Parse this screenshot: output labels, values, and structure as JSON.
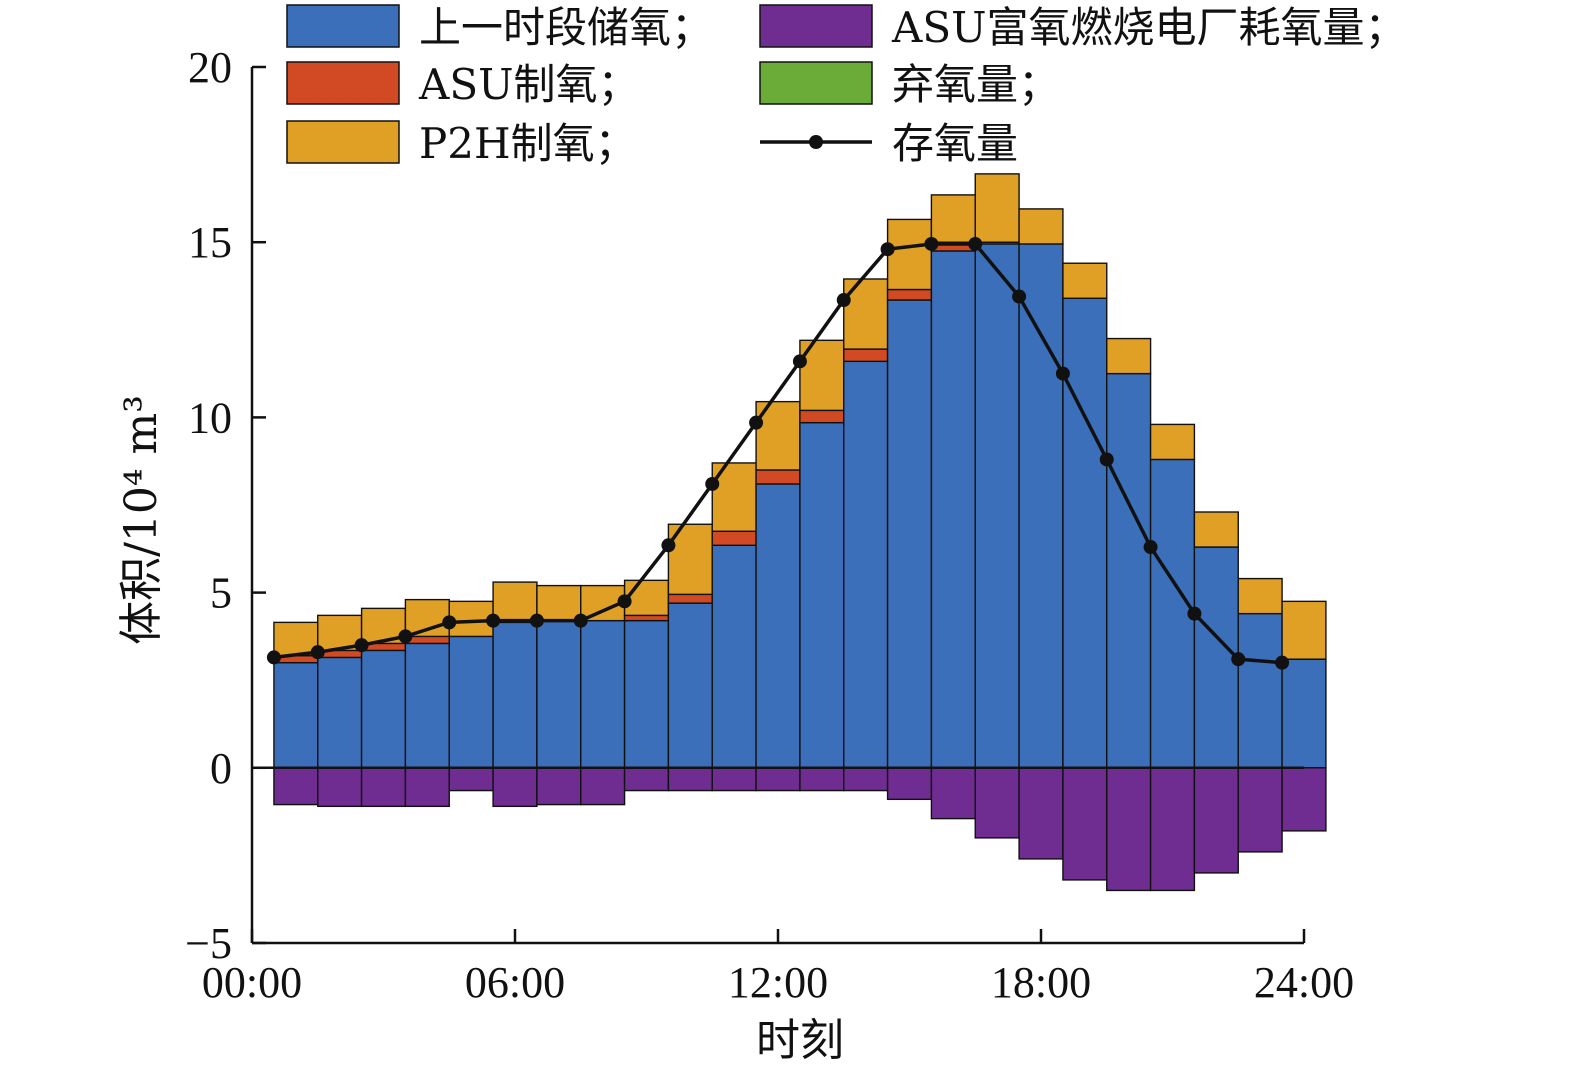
{
  "chart_data": {
    "type": "bar",
    "xlabel": "时刻",
    "ylabel": "体积/10⁴ m³",
    "ylim": [
      -5,
      20
    ],
    "yticks": [
      "−5",
      "0",
      "5",
      "10",
      "15",
      "20"
    ],
    "xticks": [
      "00:00",
      "06:00",
      "12:00",
      "18:00",
      "24:00"
    ],
    "x_hours": [
      1,
      2,
      3,
      4,
      5,
      6,
      7,
      8,
      9,
      10,
      11,
      12,
      13,
      14,
      15,
      16,
      17,
      18,
      19,
      20,
      21,
      22,
      23,
      24
    ],
    "stacked": true,
    "legend_position": "top",
    "series": [
      {
        "key": "prev",
        "name": "上一时段储氧；",
        "color": "#3b6fba",
        "values": [
          3.0,
          3.15,
          3.35,
          3.55,
          3.75,
          4.15,
          4.2,
          4.2,
          4.2,
          4.7,
          6.35,
          8.1,
          9.85,
          11.6,
          13.35,
          14.75,
          14.95,
          14.95,
          13.4,
          11.25,
          8.8,
          6.3,
          4.4,
          3.1
        ]
      },
      {
        "key": "asu",
        "name": "ASU制氧；",
        "color": "#d24a24",
        "values": [
          0.2,
          0.2,
          0.2,
          0.2,
          0.0,
          0.05,
          0.0,
          0.0,
          0.15,
          0.25,
          0.4,
          0.4,
          0.35,
          0.35,
          0.3,
          0.25,
          0.05,
          0.0,
          0.0,
          0.0,
          0.0,
          0.0,
          0.0,
          0.0
        ]
      },
      {
        "key": "p2h",
        "name": "P2H制氧；",
        "color": "#e0a026",
        "values": [
          0.95,
          1.0,
          1.0,
          1.05,
          1.0,
          1.1,
          1.0,
          1.0,
          1.0,
          2.0,
          1.95,
          1.95,
          2.0,
          2.0,
          2.0,
          1.35,
          1.95,
          1.0,
          1.0,
          1.0,
          1.0,
          1.0,
          1.0,
          1.65
        ]
      },
      {
        "key": "consume",
        "name": "ASU富氧燃烧电厂耗氧量；",
        "color": "#6f2c91",
        "values": [
          -1.05,
          -1.1,
          -1.1,
          -1.1,
          -0.65,
          -1.1,
          -1.05,
          -1.05,
          -0.65,
          -0.65,
          -0.65,
          -0.65,
          -0.65,
          -0.65,
          -0.9,
          -1.45,
          -2.0,
          -2.6,
          -3.2,
          -3.5,
          -3.5,
          -3.0,
          -2.4,
          -1.8
        ]
      },
      {
        "key": "abandon",
        "name": "弃氧量；",
        "color": "#6bab38",
        "values": [
          0,
          0,
          0,
          0,
          0,
          0,
          0,
          0,
          0,
          0,
          0,
          0,
          0,
          0,
          0,
          0,
          0,
          0,
          0,
          0,
          0,
          0,
          0,
          0
        ]
      }
    ],
    "line": {
      "name": "存氧量",
      "color": "#111111",
      "values": [
        3.15,
        3.3,
        3.5,
        3.75,
        4.15,
        4.2,
        4.2,
        4.2,
        4.75,
        6.35,
        8.1,
        9.85,
        11.6,
        13.35,
        14.8,
        14.95,
        14.95,
        13.45,
        11.25,
        8.8,
        6.3,
        4.4,
        3.1,
        3.0
      ]
    }
  }
}
